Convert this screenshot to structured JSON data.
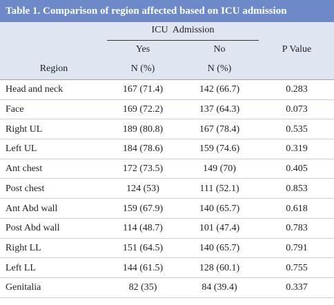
{
  "title": "Table 1. Comparison of region affected based on ICU admission",
  "header": {
    "group": "ICU  Admission",
    "yes": "Yes",
    "no": "No",
    "p_value": "P Value",
    "region": "Region",
    "yes_unit": "N (%)",
    "no_unit": "N (%)"
  },
  "table": {
    "rows": [
      [
        "Head and neck",
        "167 (71.4)",
        "142 (66.7)",
        "0.283"
      ],
      [
        "Face",
        "169 (72.2)",
        "137 (64.3)",
        "0.073"
      ],
      [
        "Right UL",
        "189 (80.8)",
        "167 (78.4)",
        "0.535"
      ],
      [
        "Left UL",
        "184 (78.6)",
        "159 (74.6)",
        "0.319"
      ],
      [
        "Ant chest",
        "172 (73.5)",
        "149 (70)",
        "0.405"
      ],
      [
        "Post chest",
        "124 (53)",
        "111 (52.1)",
        "0.853"
      ],
      [
        "Ant Abd wall",
        "159 (67.9)",
        "140 (65.7)",
        "0.618"
      ],
      [
        "Post Abd wall",
        "114 (48.7)",
        "101 (47.4)",
        "0.783"
      ],
      [
        "Right LL",
        "151 (64.5)",
        "140 (65.7)",
        "0.791"
      ],
      [
        "Left LL",
        "144 (61.5)",
        "128 (60.1)",
        "0.755"
      ],
      [
        "Genitalia",
        "82 (35)",
        "84 (39.4)",
        "0.337"
      ]
    ]
  }
}
